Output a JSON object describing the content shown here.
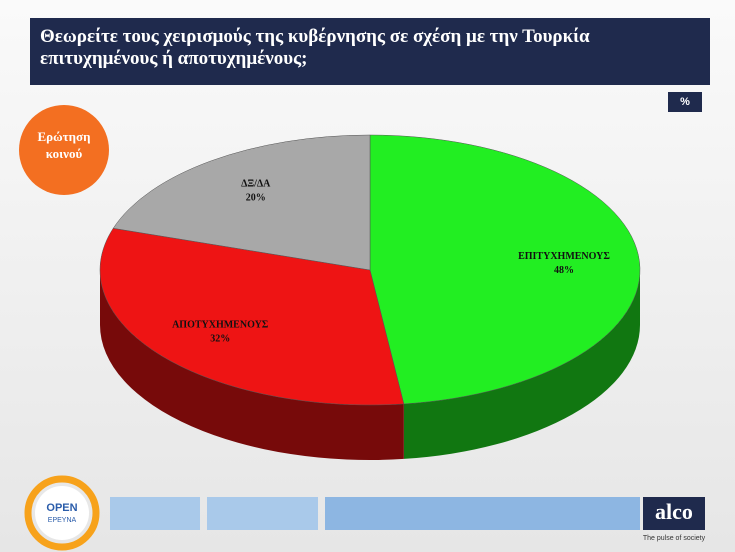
{
  "chart_data": {
    "type": "pie3d",
    "title": "Θεωρείτε τους χειρισμούς της κυβέρνησης σε σχέση με την Τουρκία επιτυχημένους ή αποτυχημένους;",
    "categories": [
      "ΕΠΙΤΥΧΗΜΕΝΟΥΣ",
      "ΑΠΟΤΥΧΗΜΕΝΟΥΣ",
      "ΔΞ/ΔΑ"
    ],
    "values": [
      48,
      32,
      20
    ],
    "value_labels": [
      "48%",
      "32%",
      "20%"
    ],
    "colors": [
      "#22ee22",
      "#ee1414",
      "#a8a8a8"
    ]
  },
  "badge": "%",
  "note": "Ερώτηση κοινού",
  "footer": {
    "logo_top": "OPEN",
    "logo_bottom": "ΕΡΕΥΝΑ",
    "brand": "alco",
    "tagline": "The pulse of society"
  }
}
